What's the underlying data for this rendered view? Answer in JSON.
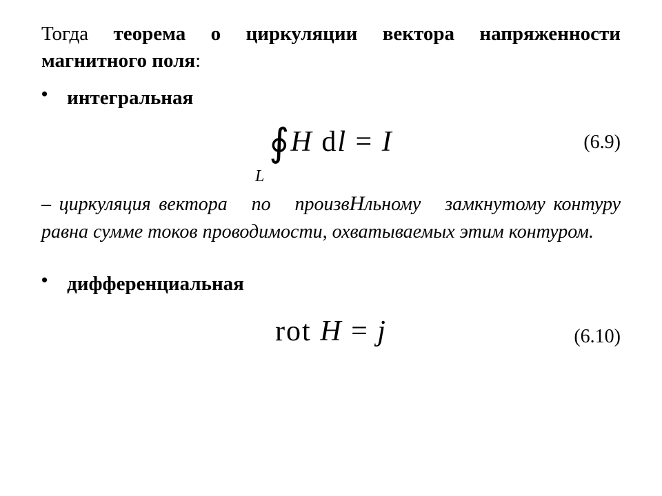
{
  "intro": {
    "prefix": "Тогда ",
    "bold": "теорема о циркуляции вектора напряженности магнитного поля",
    "suffix": ":"
  },
  "bullet1": {
    "dot": "•",
    "label": "интегральная"
  },
  "formula1": {
    "integral": "∮",
    "H": "H",
    "d": "d",
    "l": "l",
    "eq": " = ",
    "I": "I",
    "sub": "L",
    "number": "(6.9)"
  },
  "explanation": {
    "line1_a": "– циркуляция",
    "line1_b": "вектора",
    "line1_c": "по",
    "line1_d": "произв",
    "line1_H": "H",
    "line1_e": "льному",
    "line1_f": "замкнутому",
    "line2": "контуру равна сумме токов проводимости, охватываемых этим контуром."
  },
  "bullet2": {
    "dot": "•",
    "label": "дифференциальная"
  },
  "formula2": {
    "rot": "rot",
    "H": "H",
    "eq": " = ",
    "j": "j",
    "number": "(6.10)"
  },
  "style": {
    "text_color": "#000000",
    "background": "#ffffff",
    "body_fontsize": 29,
    "formula_fontsize": 42,
    "eqnum_fontsize": 28
  }
}
